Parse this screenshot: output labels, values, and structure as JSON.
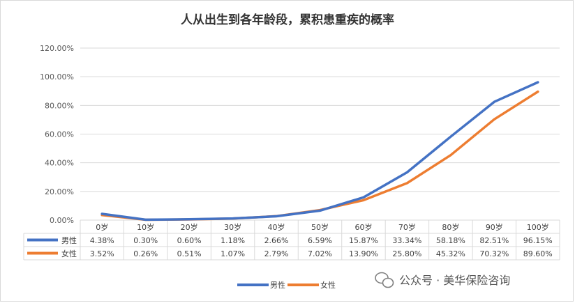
{
  "page_title": "人从出生到各年龄段，累积患重疾的概率",
  "watermark": {
    "text": "公众号 · 美华保险咨询",
    "icon": "wechat-icon"
  },
  "chart_data": {
    "type": "line",
    "title": "人从出生到各年龄段，累积患重疾的概率",
    "categories": [
      "0岁",
      "10岁",
      "20岁",
      "30岁",
      "40岁",
      "50岁",
      "60岁",
      "70岁",
      "80岁",
      "90岁",
      "100岁"
    ],
    "series": [
      {
        "name": "男性",
        "color": "#4472C4",
        "values": [
          4.38,
          0.3,
          0.6,
          1.18,
          2.66,
          6.59,
          15.87,
          33.34,
          58.18,
          82.51,
          96.15
        ],
        "labels": [
          "4.38%",
          "0.30%",
          "0.60%",
          "1.18%",
          "2.66%",
          "6.59%",
          "15.87%",
          "33.34%",
          "58.18%",
          "82.51%",
          "96.15%"
        ]
      },
      {
        "name": "女性",
        "color": "#ED7D31",
        "values": [
          3.52,
          0.26,
          0.51,
          1.07,
          2.79,
          7.02,
          13.9,
          25.8,
          45.32,
          70.32,
          89.6
        ],
        "labels": [
          "3.52%",
          "0.26%",
          "0.51%",
          "1.07%",
          "2.79%",
          "7.02%",
          "13.90%",
          "25.80%",
          "45.32%",
          "70.32%",
          "89.60%"
        ]
      }
    ],
    "ylim": [
      0,
      120
    ],
    "yticks": [
      "0.00%",
      "20.00%",
      "40.00%",
      "60.00%",
      "80.00%",
      "100.00%",
      "120.00%"
    ],
    "grid": true,
    "legend": "bottom",
    "data_table": true
  }
}
